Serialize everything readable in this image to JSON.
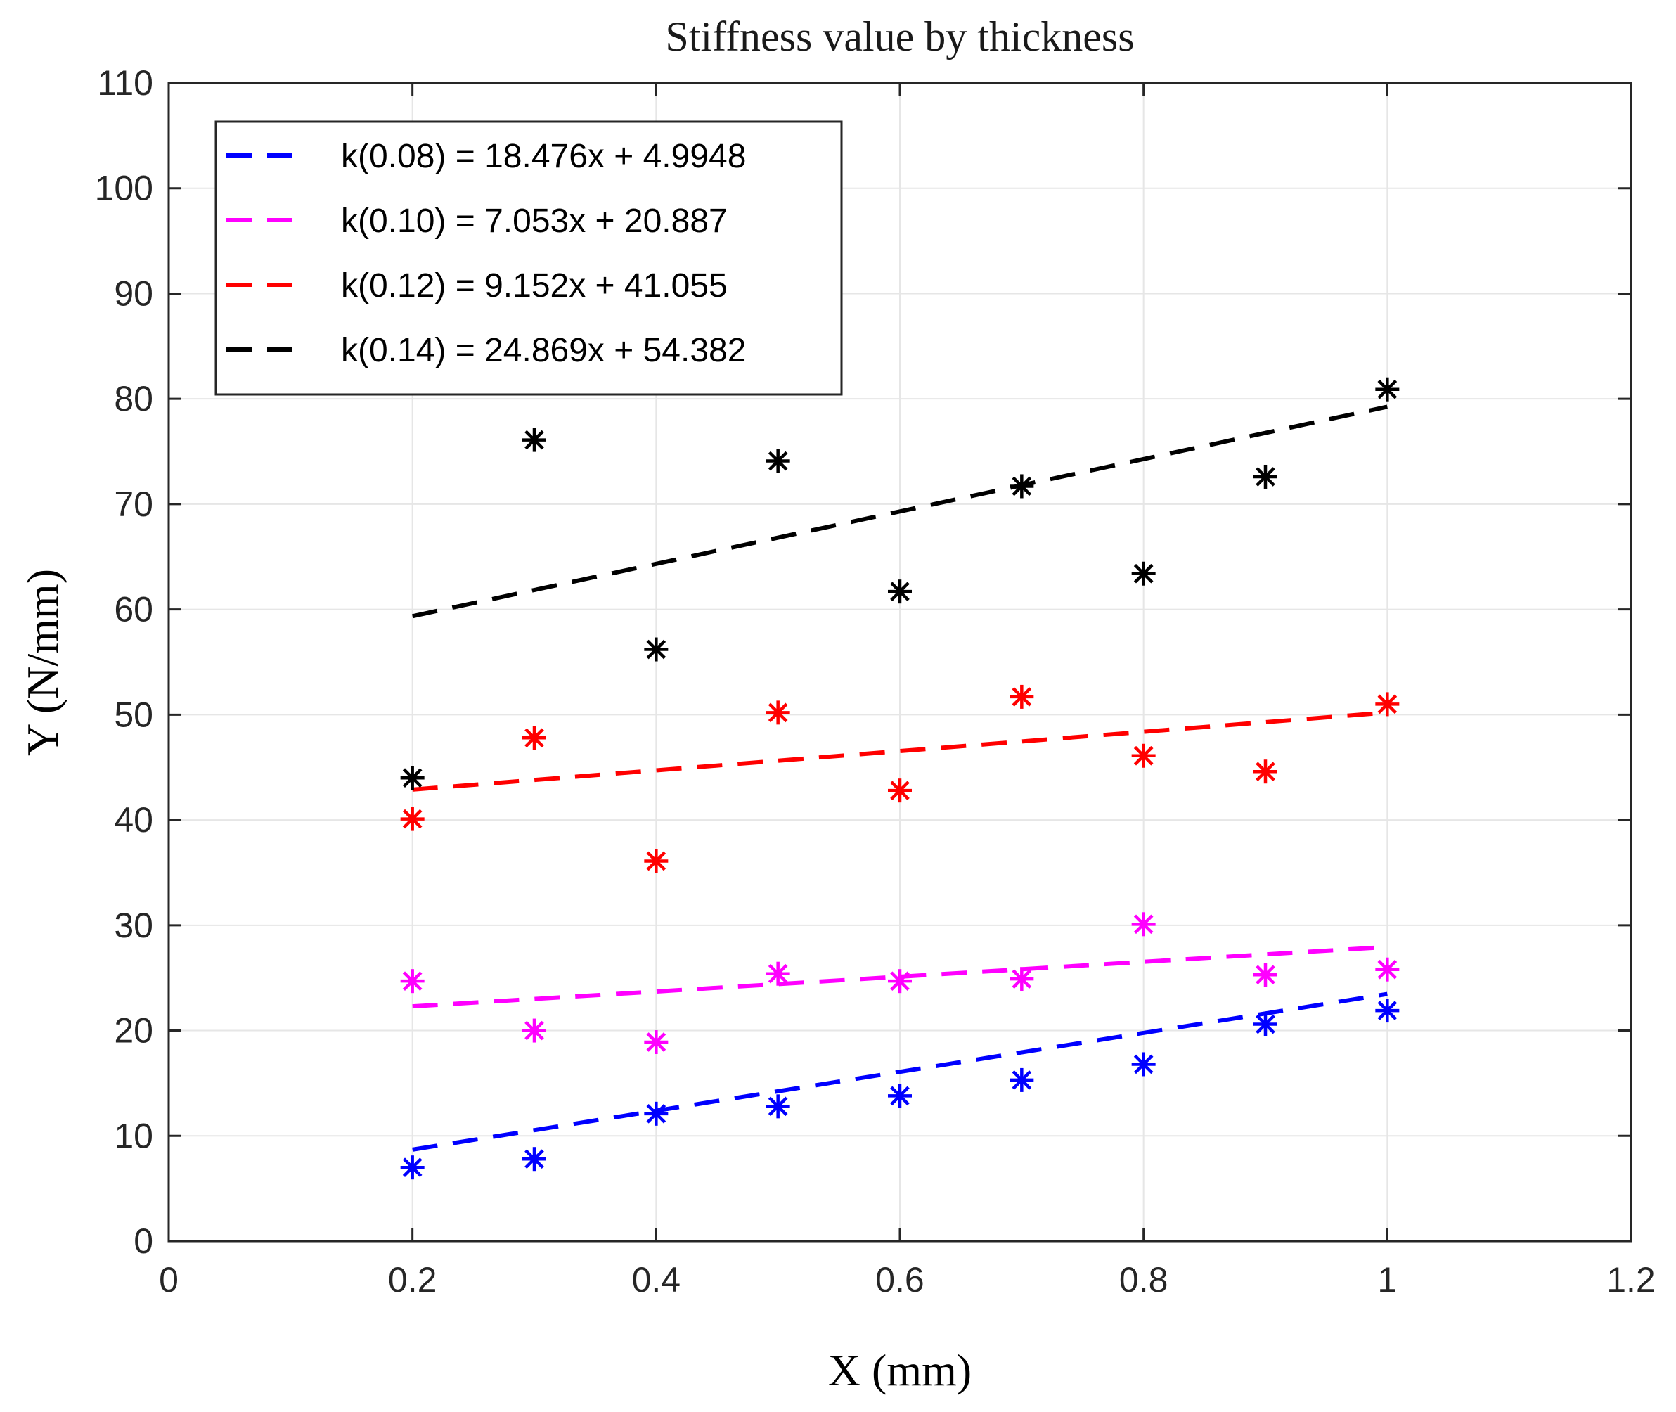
{
  "chart_data": {
    "type": "scatter",
    "title": "Stiffness value by thickness",
    "xlabel": "X (mm)",
    "ylabel": "Y (N/mm)",
    "xlim": [
      0,
      1.2
    ],
    "ylim": [
      0,
      110
    ],
    "xticks": [
      0,
      0.2,
      0.4,
      0.6,
      0.8,
      1,
      1.2
    ],
    "xtick_labels": [
      "0",
      "0.2",
      "0.4",
      "0.6",
      "0.8",
      "1",
      "1.2"
    ],
    "yticks": [
      0,
      10,
      20,
      30,
      40,
      50,
      60,
      70,
      80,
      90,
      100,
      110
    ],
    "ytick_labels": [
      "0",
      "10",
      "20",
      "30",
      "40",
      "50",
      "60",
      "70",
      "80",
      "90",
      "100",
      "110"
    ],
    "grid": true,
    "legend_position": "top-left",
    "x": [
      0.2,
      0.3,
      0.4,
      0.5,
      0.6,
      0.7,
      0.8,
      0.9,
      1.0
    ],
    "series": [
      {
        "name": "k(0.08) = 18.476x + 4.9948",
        "color": "#0000ff",
        "marker": "asterisk",
        "values": [
          7.0,
          7.8,
          12.1,
          12.8,
          13.8,
          15.3,
          16.8,
          20.6,
          21.9
        ],
        "fit": {
          "slope": 18.476,
          "intercept": 4.9948,
          "xrange": [
            0.2,
            1.0
          ]
        }
      },
      {
        "name": "k(0.10) = 7.053x + 20.887",
        "color": "#ff00ff",
        "marker": "asterisk",
        "values": [
          24.7,
          20.0,
          18.9,
          25.4,
          24.7,
          24.9,
          30.1,
          25.3,
          25.8
        ],
        "fit": {
          "slope": 7.053,
          "intercept": 20.887,
          "xrange": [
            0.2,
            1.0
          ]
        }
      },
      {
        "name": "k(0.12) = 9.152x + 41.055",
        "color": "#ff0000",
        "marker": "asterisk",
        "values": [
          40.1,
          47.8,
          36.1,
          50.2,
          42.8,
          51.7,
          46.1,
          44.6,
          51.0
        ],
        "fit": {
          "slope": 9.152,
          "intercept": 41.055,
          "xrange": [
            0.2,
            1.0
          ]
        }
      },
      {
        "name": "k(0.14) = 24.869x + 54.382",
        "color": "#000000",
        "marker": "asterisk",
        "values": [
          44.0,
          76.1,
          56.2,
          74.1,
          61.7,
          71.7,
          63.4,
          72.6,
          80.9
        ],
        "fit": {
          "slope": 24.869,
          "intercept": 54.382,
          "xrange": [
            0.2,
            1.0
          ]
        }
      }
    ]
  }
}
